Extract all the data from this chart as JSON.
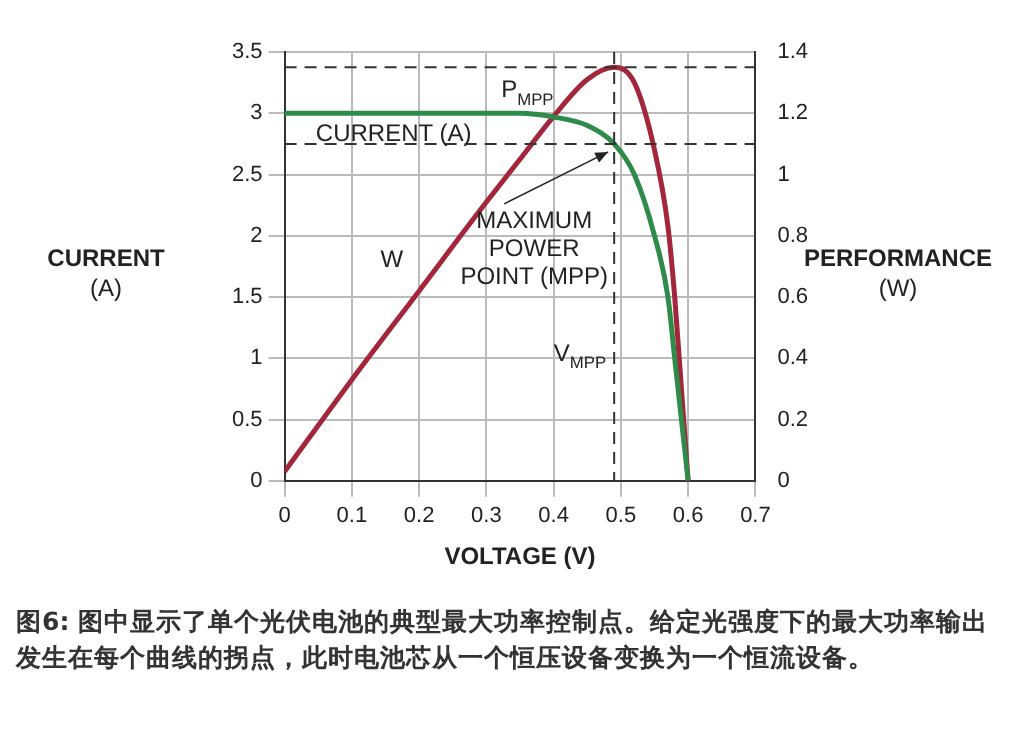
{
  "chart_data": {
    "type": "line",
    "xlabel": "VOLTAGE (V)",
    "ylabel": "CURRENT\n(A)",
    "y2label": "PERFORMANCE\n(W)",
    "x": [
      0,
      0.1,
      0.2,
      0.3,
      0.35,
      0.4,
      0.45,
      0.49,
      0.52,
      0.55,
      0.57,
      0.58,
      0.59,
      0.6
    ],
    "series": [
      {
        "name": "CURRENT (A)",
        "color": "#2e8b4a",
        "values": [
          3,
          3,
          3,
          3,
          3,
          2.97,
          2.9,
          2.75,
          2.5,
          2.0,
          1.5,
          1.0,
          0.5,
          0
        ]
      },
      {
        "name": "W",
        "color": "#a3263a",
        "axis": "y2",
        "values": [
          0.03,
          0.33,
          0.62,
          0.91,
          1.05,
          1.19,
          1.31,
          1.35,
          1.3,
          1.08,
          0.83,
          0.6,
          0.3,
          0
        ]
      }
    ],
    "xlim": [
      0,
      0.7
    ],
    "xticks": [
      0,
      0.1,
      0.2,
      0.3,
      0.4,
      0.5,
      0.6,
      0.7
    ],
    "ylim": [
      0,
      3.5
    ],
    "yticks": [
      0,
      0.5,
      1,
      1.5,
      2,
      2.5,
      3,
      3.5
    ],
    "y2lim": [
      0,
      1.4
    ],
    "y2ticks": [
      0,
      0.2,
      0.4,
      0.6,
      0.8,
      1,
      1.2,
      1.4
    ],
    "grid": true,
    "legend": false,
    "marker": "none",
    "line_style": "solid",
    "ref_lines": [
      {
        "axis": "y2",
        "value": 1.35,
        "label": "P$_{MPP}$",
        "line_style": "dashed"
      },
      {
        "axis": "y",
        "value": 2.75,
        "line_style": "dashed"
      },
      {
        "axis": "x",
        "value": 0.49,
        "label": "V$_{MPP}$",
        "line_style": "dashed"
      }
    ],
    "annotations": [
      {
        "text": "MAXIMUM\nPOWER\nPOINT (MPP)",
        "x": 0.49,
        "y": 2.75
      },
      "图6: 图中显示了单个光伏电池的典型最大功率控制点。给定光强度下的最大功率输出发生在每个曲线的拐点，此时电池芯从一个恒压设备变换为一个恒流设备。"
    ]
  }
}
